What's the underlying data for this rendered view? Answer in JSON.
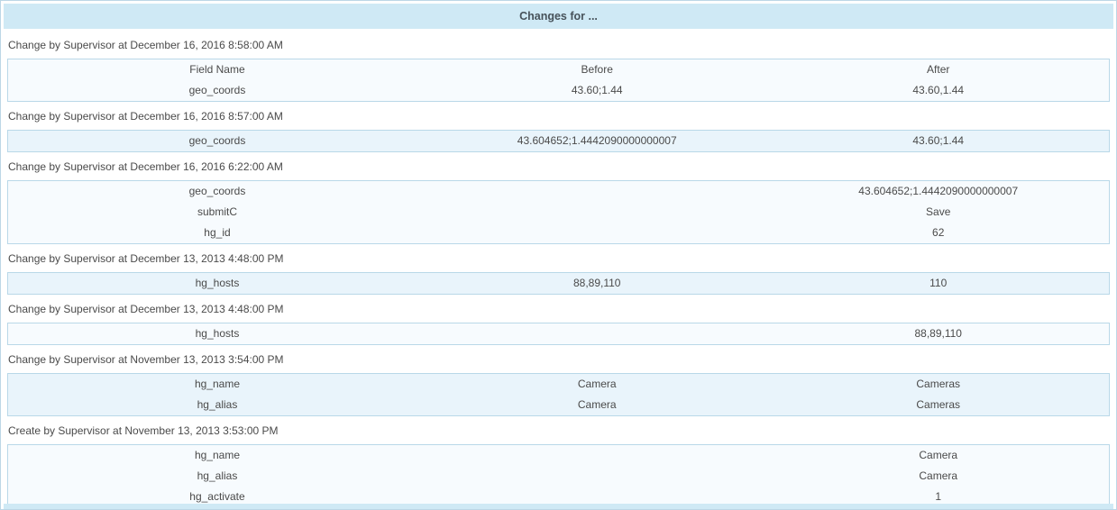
{
  "header": {
    "title": "Changes for ..."
  },
  "columns": {
    "field": "Field Name",
    "before": "Before",
    "after": "After"
  },
  "changes": [
    {
      "label": "Change by Supervisor at December 16, 2016 8:58:00 AM",
      "has_column_header": true,
      "rows": [
        {
          "field": "geo_coords",
          "before": "43.60;1.44",
          "after": "43.60,1.44"
        }
      ]
    },
    {
      "label": "Change by Supervisor at December 16, 2016 8:57:00 AM",
      "has_column_header": false,
      "rows": [
        {
          "field": "geo_coords",
          "before": "43.604652;1.4442090000000007",
          "after": "43.60;1.44"
        }
      ]
    },
    {
      "label": "Change by Supervisor at December 16, 2016 6:22:00 AM",
      "has_column_header": false,
      "rows": [
        {
          "field": "geo_coords",
          "before": "",
          "after": "43.604652;1.4442090000000007"
        },
        {
          "field": "submitC",
          "before": "",
          "after": "Save"
        },
        {
          "field": "hg_id",
          "before": "",
          "after": "62"
        }
      ]
    },
    {
      "label": "Change by Supervisor at December 13, 2013 4:48:00 PM",
      "has_column_header": false,
      "rows": [
        {
          "field": "hg_hosts",
          "before": "88,89,110",
          "after": "110"
        }
      ]
    },
    {
      "label": "Change by Supervisor at December 13, 2013 4:48:00 PM",
      "has_column_header": false,
      "rows": [
        {
          "field": "hg_hosts",
          "before": "",
          "after": "88,89,110"
        }
      ]
    },
    {
      "label": "Change by Supervisor at November 13, 2013 3:54:00 PM",
      "has_column_header": false,
      "rows": [
        {
          "field": "hg_name",
          "before": "Camera",
          "after": "Cameras"
        },
        {
          "field": "hg_alias",
          "before": "Camera",
          "after": "Cameras"
        }
      ]
    },
    {
      "label": "Create by Supervisor at November 13, 2013 3:53:00 PM",
      "has_column_header": false,
      "rows": [
        {
          "field": "hg_name",
          "before": "",
          "after": "Camera"
        },
        {
          "field": "hg_alias",
          "before": "",
          "after": "Camera"
        },
        {
          "field": "hg_activate",
          "before": "",
          "after": "1"
        }
      ]
    }
  ],
  "colors": {
    "header_bg": "#cfe9f5",
    "table_border": "#b9d8e8",
    "row_pale_bg": "#f7fbfe",
    "row_blue_bg": "#e9f4fb",
    "footer_bg": "#cfe9f5",
    "text": "#4a4a4a",
    "title_text": "#47525a"
  }
}
